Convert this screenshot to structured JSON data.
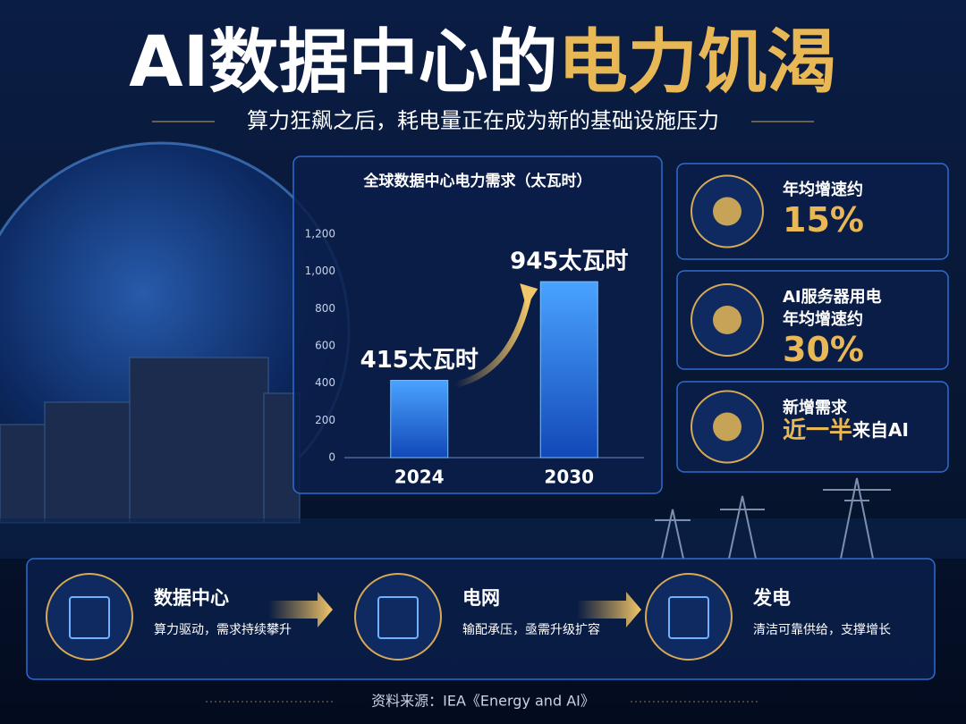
{
  "header": {
    "title_main": "AI数据中心的",
    "title_accent": "电力饥渴",
    "subtitle": "算力狂飙之后，耗电量正在成为新的基础设施压力"
  },
  "chart_data": {
    "type": "bar",
    "title": "全球数据中心电力需求（太瓦时）",
    "categories": [
      "2024",
      "2030"
    ],
    "values": [
      415,
      945
    ],
    "value_labels": [
      "415太瓦时",
      "945太瓦时"
    ],
    "color": "#2f7fe6",
    "ylim": [
      0,
      1200
    ],
    "yticks": [
      0,
      200,
      400,
      600,
      800,
      {
        "value": 1000,
        "label": "1,000"
      },
      {
        "value": 1200,
        "label": "1,200"
      }
    ],
    "grid": false
  },
  "stats": [
    {
      "lines": [
        "年均增速约"
      ],
      "highlight": "15%"
    },
    {
      "lines": [
        "AI服务器用电",
        "年均增速约"
      ],
      "highlight": "30%"
    },
    {
      "lines": [
        "新增需求"
      ],
      "highlight": "近一半",
      "suffix": "来自AI"
    }
  ],
  "flow": [
    {
      "title": "数据中心",
      "desc": "算力驱动，需求持续攀升"
    },
    {
      "title": "电网",
      "desc": "输配承压，亟需升级扩容"
    },
    {
      "title": "发电",
      "desc": "清洁可靠供给，支撑增长"
    }
  ],
  "source": "资料来源：IEA《Energy and AI》"
}
